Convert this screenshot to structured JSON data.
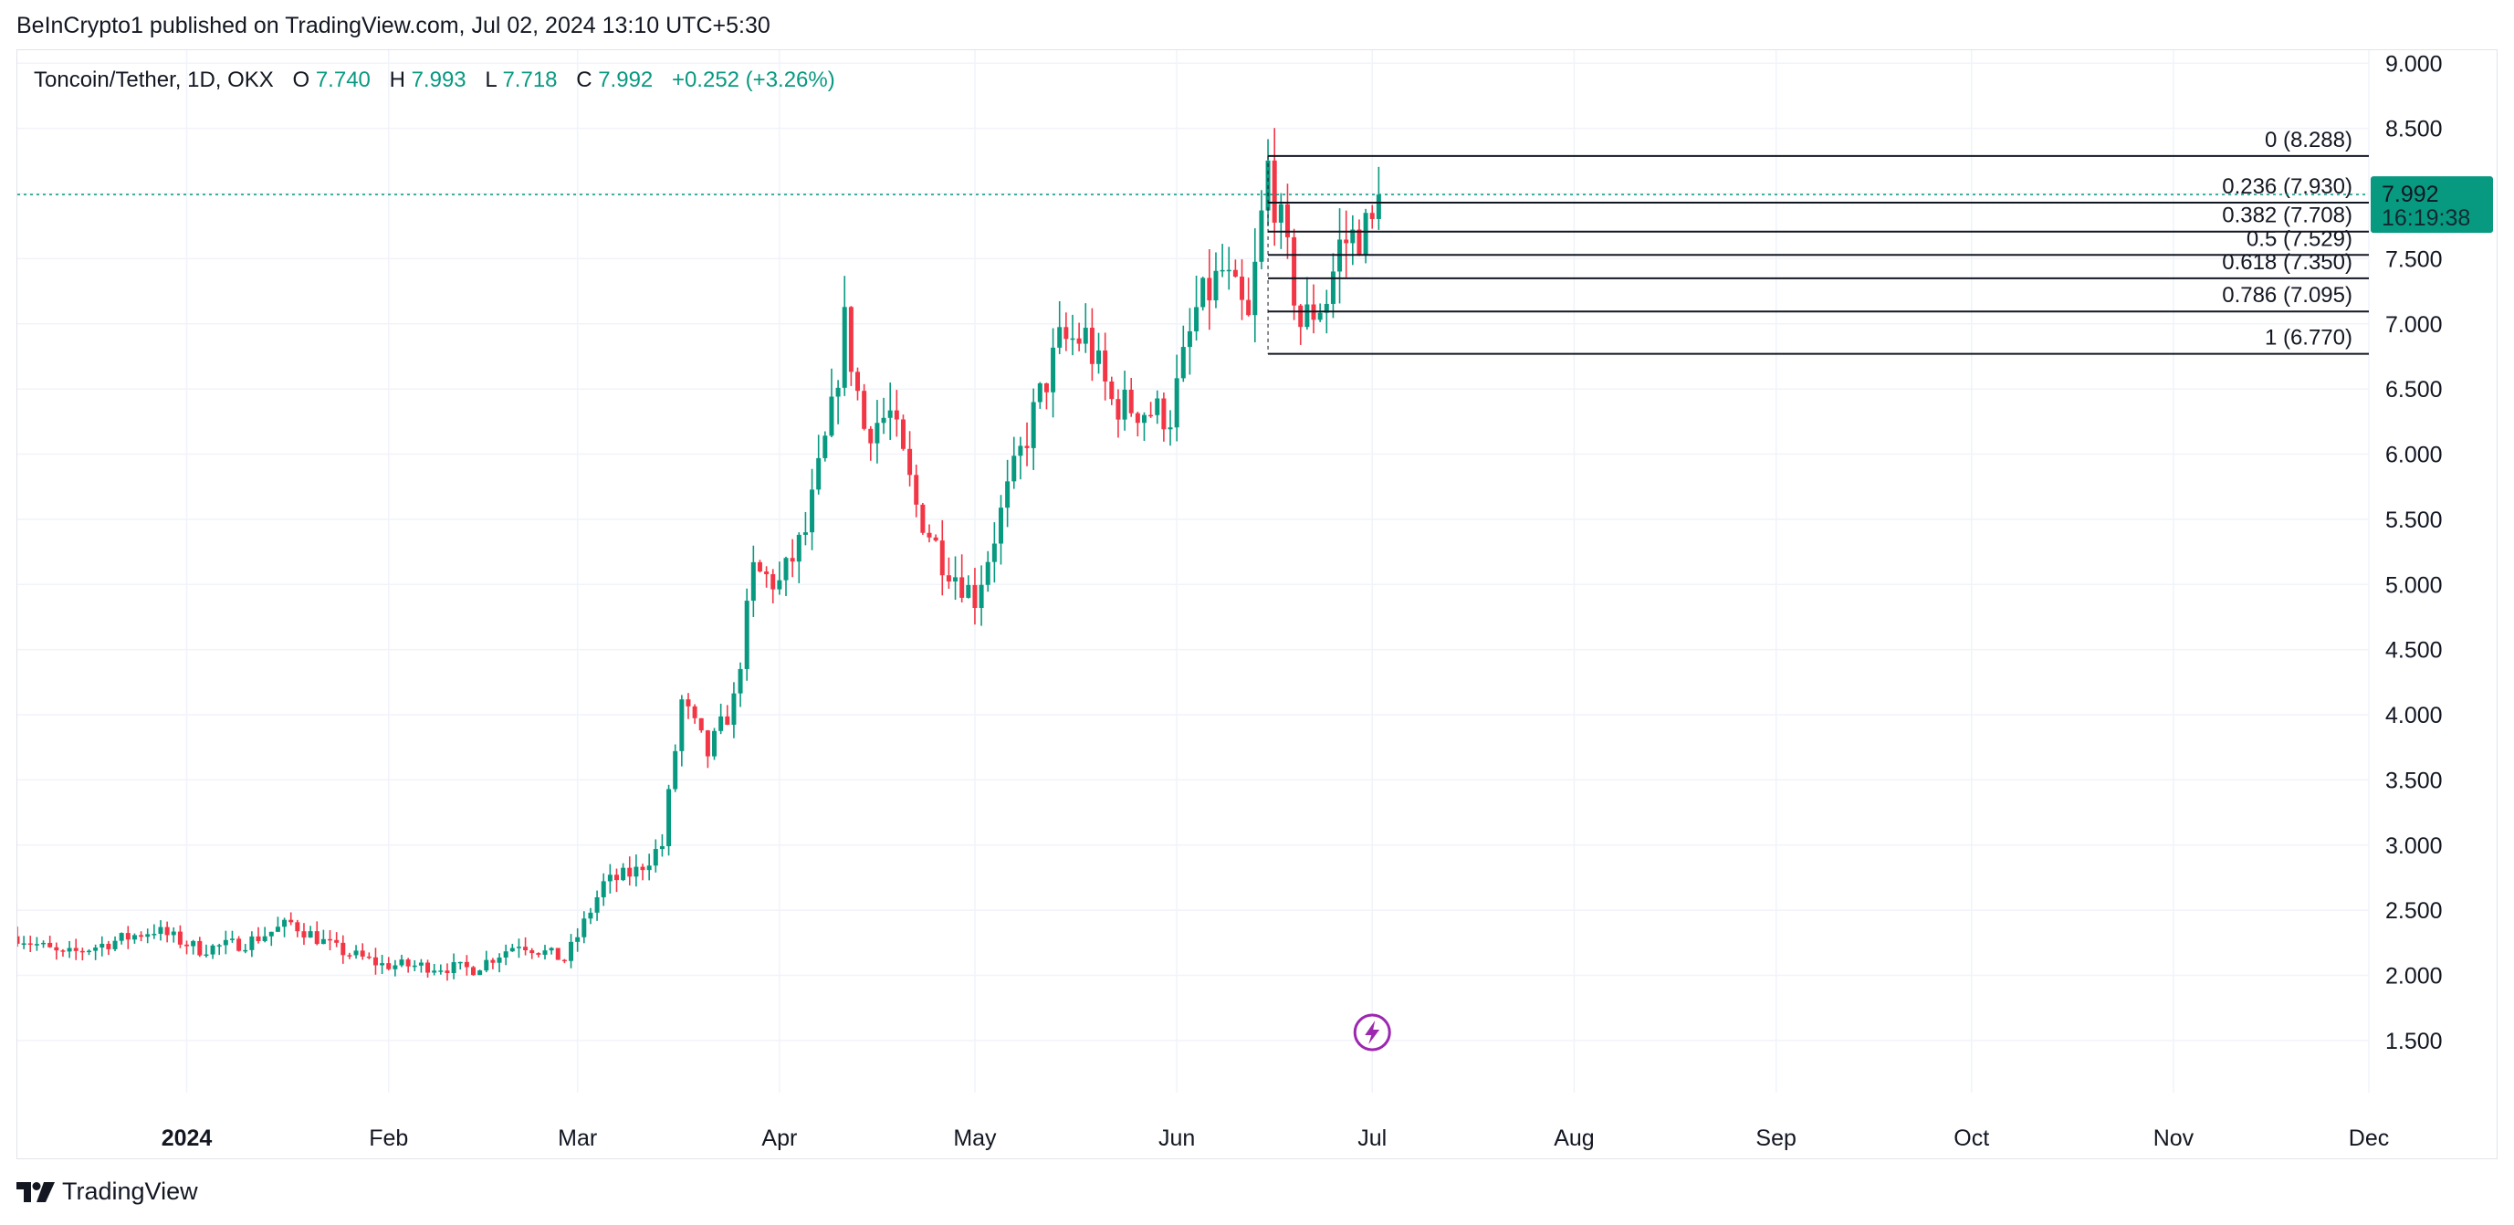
{
  "attribution": "BeInCrypto1 published on TradingView.com, Jul 02, 2024 13:10 UTC+5:30",
  "footer": {
    "brand": "TradingView"
  },
  "legend": {
    "symbol": "Toncoin/Tether, 1D, OKX",
    "o_label": "O",
    "o_value": "7.740",
    "h_label": "H",
    "h_value": "7.993",
    "l_label": "L",
    "l_value": "7.718",
    "c_label": "C",
    "c_value": "7.992",
    "change": "+0.252 (+3.26%)"
  },
  "price_badge": {
    "price": "7.992",
    "countdown": "16:19:38"
  },
  "colors": {
    "up": "#089981",
    "down": "#f23645",
    "fib_line": "#131722",
    "grid": "#f0f3fa",
    "badge": "#089981",
    "icon": "#9c27b0"
  },
  "icons": {
    "event_marker": "lightning-bolt-icon",
    "logo": "tradingview-logo-icon"
  },
  "chart_data": {
    "type": "candlestick",
    "title": "Toncoin/Tether, 1D, OKX",
    "y_ticks": [
      "9.000",
      "8.500",
      "8.000",
      "7.500",
      "7.000",
      "6.500",
      "6.000",
      "5.500",
      "5.000",
      "4.500",
      "4.000",
      "3.500",
      "3.000",
      "2.500",
      "2.000",
      "1.500"
    ],
    "x_ticks": [
      {
        "label": "2024",
        "date": "2024-01-01",
        "bold": true
      },
      {
        "label": "Feb",
        "date": "2024-02-01"
      },
      {
        "label": "Mar",
        "date": "2024-03-01"
      },
      {
        "label": "Apr",
        "date": "2024-04-01"
      },
      {
        "label": "May",
        "date": "2024-05-01"
      },
      {
        "label": "Jun",
        "date": "2024-06-01"
      },
      {
        "label": "Jul",
        "date": "2024-07-01"
      },
      {
        "label": "Aug",
        "date": "2024-08-01"
      },
      {
        "label": "Sep",
        "date": "2024-09-01"
      },
      {
        "label": "Oct",
        "date": "2024-10-01"
      },
      {
        "label": "Nov",
        "date": "2024-11-01"
      },
      {
        "label": "Dec",
        "date": "2024-12-01"
      }
    ],
    "x_range": [
      "2023-12-06",
      "2024-12-01"
    ],
    "y_range": [
      1.1,
      9.1
    ],
    "last_price": 7.992,
    "fibonacci": {
      "start_date": "2024-06-15",
      "levels": [
        {
          "label": "0 (8.288)",
          "value": 8.288
        },
        {
          "label": "0.236 (7.930)",
          "value": 7.93
        },
        {
          "label": "0.382 (7.708)",
          "value": 7.708
        },
        {
          "label": "0.5 (7.529)",
          "value": 7.529
        },
        {
          "label": "0.618 (7.350)",
          "value": 7.35
        },
        {
          "label": "0.786 (7.095)",
          "value": 7.095
        },
        {
          "label": "1 (6.770)",
          "value": 6.77
        }
      ]
    },
    "event_marker_date": "2024-07-01",
    "key_closes": [
      {
        "date": "2023-12-06",
        "close": 2.3
      },
      {
        "date": "2023-12-13",
        "close": 2.15
      },
      {
        "date": "2023-12-20",
        "close": 2.25
      },
      {
        "date": "2023-12-27",
        "close": 2.35
      },
      {
        "date": "2024-01-03",
        "close": 2.2
      },
      {
        "date": "2024-01-10",
        "close": 2.25
      },
      {
        "date": "2024-01-17",
        "close": 2.4
      },
      {
        "date": "2024-01-24",
        "close": 2.2
      },
      {
        "date": "2024-01-31",
        "close": 2.08
      },
      {
        "date": "2024-02-07",
        "close": 2.07
      },
      {
        "date": "2024-02-14",
        "close": 2.05
      },
      {
        "date": "2024-02-21",
        "close": 2.25
      },
      {
        "date": "2024-02-28",
        "close": 2.12
      },
      {
        "date": "2024-03-01",
        "close": 2.3
      },
      {
        "date": "2024-03-05",
        "close": 2.7
      },
      {
        "date": "2024-03-10",
        "close": 2.8
      },
      {
        "date": "2024-03-14",
        "close": 3.0
      },
      {
        "date": "2024-03-17",
        "close": 4.1
      },
      {
        "date": "2024-03-21",
        "close": 3.7
      },
      {
        "date": "2024-03-25",
        "close": 4.1
      },
      {
        "date": "2024-03-28",
        "close": 5.1
      },
      {
        "date": "2024-04-01",
        "close": 5.0
      },
      {
        "date": "2024-04-05",
        "close": 5.4
      },
      {
        "date": "2024-04-09",
        "close": 6.3
      },
      {
        "date": "2024-04-11",
        "close": 7.0
      },
      {
        "date": "2024-04-14",
        "close": 6.2
      },
      {
        "date": "2024-04-18",
        "close": 6.3
      },
      {
        "date": "2024-04-22",
        "close": 5.6
      },
      {
        "date": "2024-04-26",
        "close": 5.2
      },
      {
        "date": "2024-05-01",
        "close": 4.9
      },
      {
        "date": "2024-05-06",
        "close": 5.7
      },
      {
        "date": "2024-05-10",
        "close": 6.3
      },
      {
        "date": "2024-05-14",
        "close": 6.85
      },
      {
        "date": "2024-05-18",
        "close": 6.9
      },
      {
        "date": "2024-05-22",
        "close": 6.4
      },
      {
        "date": "2024-05-26",
        "close": 6.35
      },
      {
        "date": "2024-05-31",
        "close": 6.3
      },
      {
        "date": "2024-06-04",
        "close": 7.1
      },
      {
        "date": "2024-06-08",
        "close": 7.4
      },
      {
        "date": "2024-06-12",
        "close": 7.0
      },
      {
        "date": "2024-06-15",
        "close": 8.2
      },
      {
        "date": "2024-06-18",
        "close": 7.5
      },
      {
        "date": "2024-06-20",
        "close": 7.0
      },
      {
        "date": "2024-06-24",
        "close": 7.2
      },
      {
        "date": "2024-06-26",
        "close": 7.6
      },
      {
        "date": "2024-06-29",
        "close": 7.7
      },
      {
        "date": "2024-07-01",
        "close": 7.74
      },
      {
        "date": "2024-07-02",
        "close": 7.992
      }
    ]
  }
}
